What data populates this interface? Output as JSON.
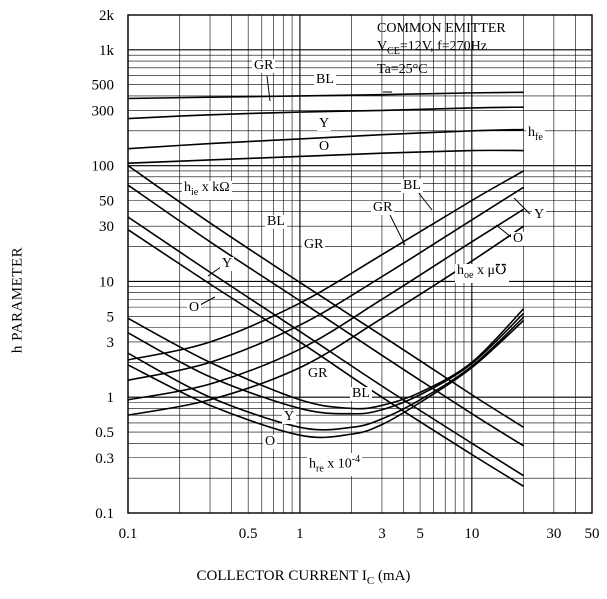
{
  "chart_data": {
    "type": "line",
    "xscale": "log",
    "yscale": "log",
    "xlim": [
      0.1,
      50
    ],
    "ylim": [
      0.1,
      2000
    ],
    "xlabel": "COLLECTOR CURRENT I",
    "xlabel_sub": "C",
    "xlabel_unit": "(mA)",
    "ylabel": "h PARAMETER",
    "x_ticks": [
      "0.1",
      "0.5",
      "1",
      "3",
      "5",
      "10",
      "30",
      "50"
    ],
    "x_tick_values": [
      0.1,
      0.5,
      1,
      3,
      5,
      10,
      30,
      50
    ],
    "y_ticks": [
      "0.1",
      "0.3",
      "0.5",
      "1",
      "3",
      "5",
      "10",
      "30",
      "50",
      "100",
      "300",
      "500",
      "1k",
      "2k"
    ],
    "y_tick_values": [
      0.1,
      0.3,
      0.5,
      1,
      3,
      5,
      10,
      30,
      50,
      100,
      300,
      500,
      1000,
      2000
    ],
    "grid": true,
    "conditions": {
      "line1": "COMMON EMITTER",
      "line2_pre": "V",
      "line2_sub": "CE",
      "line2_post": "=12V, f=270Hz",
      "line3": "Ta=25°C"
    },
    "series_labels": {
      "hfe_main": "h",
      "hfe_sub": "fe",
      "hie_main": "h",
      "hie_sub": "ie",
      "hie_unit": "x kΩ",
      "hoe_main": "h",
      "hoe_sub": "oe",
      "hoe_unit": "x μ℧",
      "hre_main": "h",
      "hre_sub": "re",
      "hre_unit": "x 10",
      "hre_exp": "-4"
    },
    "group_labels": [
      "GR",
      "BL",
      "Y",
      "O"
    ],
    "series": [
      {
        "parameter": "hfe",
        "rank": "GR",
        "x": [
          0.1,
          0.3,
          1,
          3,
          10,
          20
        ],
        "y": [
          380,
          390,
          400,
          410,
          425,
          430
        ]
      },
      {
        "parameter": "hfe",
        "rank": "BL",
        "x": [
          0.1,
          0.3,
          1,
          3,
          10,
          20
        ],
        "y": [
          255,
          275,
          290,
          300,
          315,
          320
        ]
      },
      {
        "parameter": "hfe",
        "rank": "Y",
        "x": [
          0.1,
          0.3,
          1,
          3,
          10,
          20
        ],
        "y": [
          140,
          155,
          170,
          185,
          200,
          205
        ]
      },
      {
        "parameter": "hfe",
        "rank": "O",
        "x": [
          0.1,
          0.3,
          1,
          3,
          10,
          20
        ],
        "y": [
          105,
          112,
          120,
          128,
          135,
          135
        ]
      },
      {
        "parameter": "hie",
        "rank": "GR",
        "x": [
          0.1,
          0.3,
          1,
          3,
          10,
          20
        ],
        "y": [
          100,
          32,
          9.8,
          3.4,
          1.05,
          0.55
        ]
      },
      {
        "parameter": "hie",
        "rank": "BL",
        "x": [
          0.1,
          0.3,
          1,
          3,
          10,
          20
        ],
        "y": [
          68,
          22,
          6.8,
          2.3,
          0.72,
          0.38
        ]
      },
      {
        "parameter": "hie",
        "rank": "Y",
        "x": [
          0.1,
          0.3,
          1,
          3,
          10,
          20
        ],
        "y": [
          36,
          12,
          3.7,
          1.25,
          0.4,
          0.21
        ]
      },
      {
        "parameter": "hie",
        "rank": "O",
        "x": [
          0.1,
          0.3,
          1,
          3,
          10,
          20
        ],
        "y": [
          28,
          9.5,
          3,
          1,
          0.32,
          0.17
        ]
      },
      {
        "parameter": "hoe",
        "rank": "BL",
        "x": [
          0.1,
          0.3,
          1,
          3,
          10,
          20
        ],
        "y": [
          2.1,
          3,
          6.5,
          17,
          50,
          90
        ]
      },
      {
        "parameter": "hoe",
        "rank": "GR",
        "x": [
          0.1,
          0.3,
          1,
          3,
          10,
          20
        ],
        "y": [
          1.4,
          2,
          4.2,
          11,
          34,
          65
        ]
      },
      {
        "parameter": "hoe",
        "rank": "Y",
        "x": [
          0.1,
          0.3,
          1,
          3,
          10,
          20
        ],
        "y": [
          0.95,
          1.3,
          2.6,
          7,
          22,
          42
        ]
      },
      {
        "parameter": "hoe",
        "rank": "O",
        "x": [
          0.1,
          0.3,
          1,
          3,
          10,
          20
        ],
        "y": [
          0.7,
          0.95,
          1.8,
          4.8,
          15,
          30
        ]
      },
      {
        "parameter": "hre",
        "rank": "BL",
        "x": [
          0.1,
          0.3,
          1,
          2,
          3,
          5,
          10,
          20
        ],
        "y": [
          4.8,
          2,
          0.95,
          0.8,
          0.85,
          1.1,
          2,
          5.8
        ]
      },
      {
        "parameter": "hre",
        "rank": "GR",
        "x": [
          0.1,
          0.3,
          1,
          2,
          3,
          5,
          10,
          20
        ],
        "y": [
          3.6,
          1.5,
          0.8,
          0.72,
          0.78,
          1.05,
          1.95,
          5.3
        ]
      },
      {
        "parameter": "hre",
        "rank": "Y",
        "x": [
          0.1,
          0.3,
          1,
          2,
          3,
          5,
          10,
          20
        ],
        "y": [
          2.4,
          1,
          0.55,
          0.55,
          0.65,
          0.95,
          1.85,
          4.9
        ]
      },
      {
        "parameter": "hre",
        "rank": "O",
        "x": [
          0.1,
          0.3,
          1,
          2,
          3,
          5,
          10,
          20
        ],
        "y": [
          1.9,
          0.85,
          0.47,
          0.48,
          0.58,
          0.9,
          1.8,
          4.6
        ]
      }
    ]
  }
}
